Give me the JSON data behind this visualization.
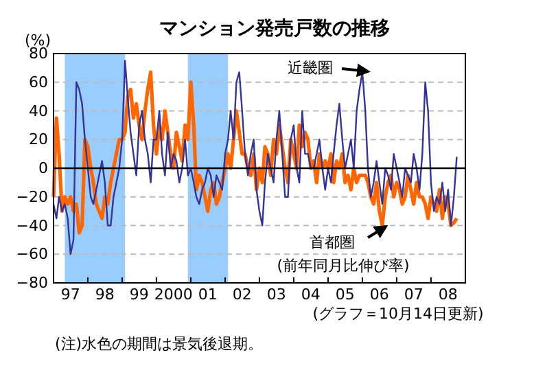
{
  "chart_data": {
    "type": "line",
    "title": "マンション発売戸数の推移",
    "ylabel": "(%)",
    "annotations": [
      "(前年同月比伸び率)",
      "(グラフ＝10月14日更新)",
      "(注)水色の期間は景気後退期。"
    ],
    "x": [
      "1997-01",
      "1997-02",
      "1997-03",
      "1997-04",
      "1997-05",
      "1997-06",
      "1997-07",
      "1997-08",
      "1997-09",
      "1997-10",
      "1997-11",
      "1997-12",
      "1998-01",
      "1998-02",
      "1998-03",
      "1998-04",
      "1998-05",
      "1998-06",
      "1998-07",
      "1998-08",
      "1998-09",
      "1998-10",
      "1998-11",
      "1998-12",
      "1999-01",
      "1999-02",
      "1999-03",
      "1999-04",
      "1999-05",
      "1999-06",
      "1999-07",
      "1999-08",
      "1999-09",
      "1999-10",
      "1999-11",
      "1999-12",
      "2000-01",
      "2000-02",
      "2000-03",
      "2000-04",
      "2000-05",
      "2000-06",
      "2000-07",
      "2000-08",
      "2000-09",
      "2000-10",
      "2000-11",
      "2000-12",
      "2001-01",
      "2001-02",
      "2001-03",
      "2001-04",
      "2001-05",
      "2001-06",
      "2001-07",
      "2001-08",
      "2001-09",
      "2001-10",
      "2001-11",
      "2001-12",
      "2002-01",
      "2002-02",
      "2002-03",
      "2002-04",
      "2002-05",
      "2002-06",
      "2002-07",
      "2002-08",
      "2002-09",
      "2002-10",
      "2002-11",
      "2002-12",
      "2003-01",
      "2003-02",
      "2003-03",
      "2003-04",
      "2003-05",
      "2003-06",
      "2003-07",
      "2003-08",
      "2003-09",
      "2003-10",
      "2003-11",
      "2003-12",
      "2004-01",
      "2004-02",
      "2004-03",
      "2004-04",
      "2004-05",
      "2004-06",
      "2004-07",
      "2004-08",
      "2004-09",
      "2004-10",
      "2004-11",
      "2004-12",
      "2005-01",
      "2005-02",
      "2005-03",
      "2005-04",
      "2005-05",
      "2005-06",
      "2005-07",
      "2005-08",
      "2005-09",
      "2005-10",
      "2005-11",
      "2005-12",
      "2006-01",
      "2006-02",
      "2006-03",
      "2006-04",
      "2006-05",
      "2006-06",
      "2006-07",
      "2006-08",
      "2006-09",
      "2006-10",
      "2006-11",
      "2006-12",
      "2007-01",
      "2007-02",
      "2007-03",
      "2007-04",
      "2007-05",
      "2007-06",
      "2007-07",
      "2007-08",
      "2007-09",
      "2007-10",
      "2007-11",
      "2007-12",
      "2008-01",
      "2008-02",
      "2008-03",
      "2008-04",
      "2008-05",
      "2008-06",
      "2008-07",
      "2008-08",
      "2008-09",
      "2008-10"
    ],
    "series": [
      {
        "name": "首都圏",
        "color": "#ff6600",
        "values": [
          -20,
          35,
          10,
          -30,
          -20,
          -25,
          -20,
          -30,
          -25,
          -45,
          -40,
          20,
          15,
          0,
          -10,
          -25,
          -30,
          -35,
          -20,
          -25,
          -10,
          0,
          10,
          20,
          20,
          25,
          50,
          55,
          35,
          45,
          30,
          20,
          40,
          55,
          67,
          30,
          10,
          30,
          20,
          40,
          25,
          10,
          0,
          25,
          15,
          5,
          30,
          20,
          60,
          30,
          -15,
          -5,
          -10,
          -20,
          -30,
          -15,
          -10,
          -25,
          -20,
          -10,
          0,
          10,
          0,
          20,
          40,
          25,
          10,
          10,
          0,
          -5,
          10,
          -15,
          0,
          -10,
          15,
          10,
          -5,
          20,
          10,
          30,
          15,
          0,
          -10,
          20,
          10,
          0,
          30,
          15,
          25,
          20,
          0,
          5,
          -10,
          10,
          0,
          5,
          0,
          10,
          -10,
          5,
          0,
          10,
          -10,
          -5,
          -15,
          0,
          -10,
          -5,
          -5,
          -5,
          -10,
          -20,
          -25,
          -10,
          -30,
          -40,
          -20,
          -10,
          -5,
          -20,
          -10,
          -15,
          -25,
          -20,
          -5,
          -15,
          -25,
          -10,
          -20,
          -20,
          -25,
          -35,
          -20,
          -25,
          -30,
          -15,
          -35,
          -20,
          -25,
          -40,
          -38,
          -35
        ]
      },
      {
        "name": "近畿圏",
        "color": "#333399",
        "values": [
          -25,
          -35,
          -20,
          -30,
          -25,
          -35,
          -60,
          -50,
          60,
          55,
          45,
          20,
          0,
          -20,
          -25,
          -15,
          -5,
          5,
          -10,
          -40,
          -40,
          -20,
          -10,
          0,
          20,
          75,
          50,
          25,
          10,
          -5,
          30,
          40,
          20,
          10,
          -10,
          20,
          20,
          40,
          10,
          -5,
          25,
          0,
          10,
          5,
          -10,
          0,
          20,
          -5,
          0,
          -10,
          -20,
          -25,
          -15,
          -10,
          0,
          -5,
          -20,
          -5,
          -10,
          -15,
          10,
          20,
          40,
          20,
          60,
          67,
          40,
          10,
          -5,
          10,
          20,
          -15,
          -30,
          -40,
          -10,
          10,
          0,
          -10,
          20,
          40,
          10,
          -20,
          -20,
          20,
          30,
          0,
          -10,
          40,
          10,
          10,
          0,
          0,
          10,
          20,
          0,
          -15,
          0,
          -10,
          10,
          30,
          45,
          20,
          0,
          10,
          20,
          0,
          40,
          55,
          67,
          40,
          0,
          -20,
          -10,
          5,
          -10,
          -25,
          0,
          -5,
          -15,
          10,
          0,
          -10,
          -20,
          0,
          -5,
          -10,
          10,
          0,
          -15,
          10,
          60,
          40,
          -10,
          -30,
          -20,
          -25,
          -10,
          -30,
          -15,
          -40,
          -20,
          8
        ]
      }
    ],
    "xlim": [
      "1997-01",
      "2009-01"
    ],
    "xticks": [
      {
        "value": "1997-01",
        "label": null
      },
      {
        "value": "1997-07",
        "label": "97"
      },
      {
        "value": "1998-01",
        "label": null
      },
      {
        "value": "1998-07",
        "label": "98"
      },
      {
        "value": "1999-01",
        "label": null
      },
      {
        "value": "1999-07",
        "label": "99"
      },
      {
        "value": "2000-01",
        "label": null
      },
      {
        "value": "2000-07",
        "label": "2000"
      },
      {
        "value": "2001-01",
        "label": null
      },
      {
        "value": "2001-07",
        "label": "01"
      },
      {
        "value": "2002-01",
        "label": null
      },
      {
        "value": "2002-07",
        "label": "02"
      },
      {
        "value": "2003-01",
        "label": null
      },
      {
        "value": "2003-07",
        "label": "03"
      },
      {
        "value": "2004-01",
        "label": null
      },
      {
        "value": "2004-07",
        "label": "04"
      },
      {
        "value": "2005-01",
        "label": null
      },
      {
        "value": "2005-07",
        "label": "05"
      },
      {
        "value": "2006-01",
        "label": null
      },
      {
        "value": "2006-07",
        "label": "06"
      },
      {
        "value": "2007-01",
        "label": null
      },
      {
        "value": "2007-07",
        "label": "07"
      },
      {
        "value": "2008-01",
        "label": null
      },
      {
        "value": "2008-07",
        "label": "08"
      },
      {
        "value": "2009-01",
        "label": null
      }
    ],
    "ylim": [
      -80,
      80
    ],
    "yticks": [
      -80,
      -60,
      -40,
      -20,
      0,
      20,
      40,
      60,
      80
    ],
    "grid": "y",
    "ref_lines": [
      {
        "axis": "y",
        "value": 0,
        "color": "#000000",
        "line_style": "solid"
      }
    ],
    "bands": [
      {
        "axis": "x",
        "from": "1997-05",
        "to": "1999-02",
        "color": "#99ccff"
      },
      {
        "axis": "x",
        "from": "2000-12",
        "to": "2002-02",
        "color": "#99ccff"
      }
    ]
  }
}
